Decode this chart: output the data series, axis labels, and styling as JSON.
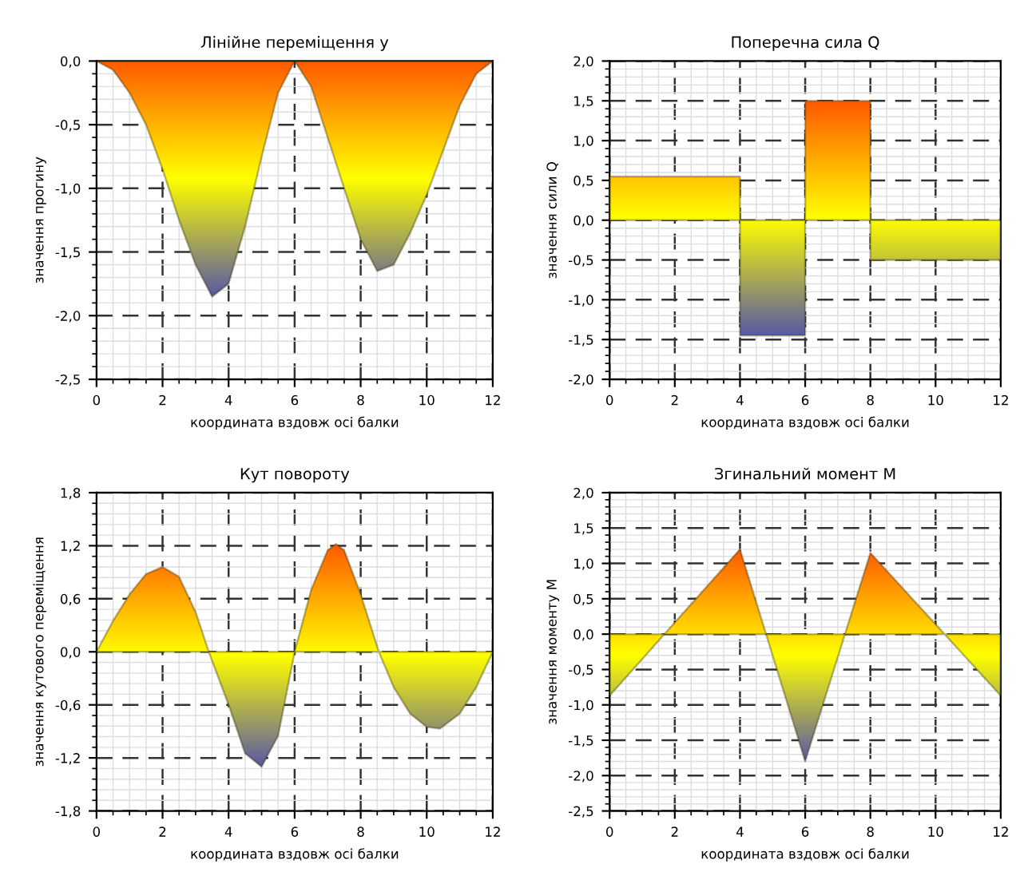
{
  "chart_data": [
    {
      "type": "area",
      "title": "Лінійне переміщення y",
      "xlabel": "координата вздовж осі балки",
      "ylabel": "значення прогину",
      "x": [
        0,
        0.5,
        1,
        1.5,
        2,
        2.5,
        3,
        3.5,
        4,
        4.5,
        5,
        5.5,
        6,
        6.5,
        7,
        7.5,
        8,
        8.5,
        9,
        9.5,
        10,
        10.5,
        11,
        11.5,
        12
      ],
      "series": [
        {
          "color": "#ffff00",
          "values": [
            0,
            -0.07,
            -0.25,
            -0.5,
            -0.85,
            -1.25,
            -1.6,
            -1.85,
            -1.75,
            -1.3,
            -0.75,
            -0.25,
            0,
            -0.2,
            -0.6,
            -1.0,
            -1.4,
            -1.65,
            -1.6,
            -1.35,
            -1.05,
            -0.7,
            -0.35,
            -0.1,
            0
          ]
        }
      ],
      "xlim": [
        0,
        12
      ],
      "xticks": [
        0,
        2,
        4,
        6,
        8,
        10,
        12
      ],
      "ylim": [
        -2.5,
        0
      ],
      "yticks": [
        {
          "value": 0,
          "label": "0,0"
        },
        {
          "value": -0.5,
          "label": "-0,5"
        },
        {
          "value": -1.0,
          "label": "-1,0"
        },
        {
          "value": -1.5,
          "label": "-1,5"
        },
        {
          "value": -2.0,
          "label": "-2,0"
        },
        {
          "value": -2.5,
          "label": "-2,5"
        }
      ],
      "grid": true,
      "line_style": "solid"
    },
    {
      "type": "area",
      "title": "Поперечна сила Q",
      "xlabel": "координата вздовж осі балки",
      "ylabel": "значення сили Q",
      "x": [
        0,
        4,
        4,
        6,
        6,
        8,
        8,
        12
      ],
      "series": [
        {
          "color": "#ffff00",
          "values": [
            0.55,
            0.55,
            -1.45,
            -1.45,
            1.5,
            1.5,
            -0.5,
            -0.5
          ]
        }
      ],
      "xlim": [
        0,
        12
      ],
      "xticks": [
        0,
        2,
        4,
        6,
        8,
        10,
        12
      ],
      "ylim": [
        -2.0,
        2.0
      ],
      "yticks": [
        {
          "value": 2.0,
          "label": "2,0"
        },
        {
          "value": 1.5,
          "label": "1,5"
        },
        {
          "value": 1.0,
          "label": "1,0"
        },
        {
          "value": 0.5,
          "label": "0,5"
        },
        {
          "value": 0,
          "label": "0,0"
        },
        {
          "value": -0.5,
          "label": "-0,5"
        },
        {
          "value": -1.0,
          "label": "-1,0"
        },
        {
          "value": -1.5,
          "label": "-1,5"
        },
        {
          "value": -2.0,
          "label": "-2,0"
        }
      ],
      "grid": true,
      "line_style": "solid"
    },
    {
      "type": "area",
      "title": "Кут повороту",
      "xlabel": "координата вздовж осі балки",
      "ylabel": "значення кутового переміщення",
      "x": [
        0,
        0.5,
        1,
        1.5,
        2,
        2.5,
        3,
        3.4,
        4,
        4.5,
        5,
        5.5,
        6,
        6.5,
        7,
        7.25,
        7.5,
        8,
        8.55,
        9,
        9.5,
        10,
        10.4,
        11,
        11.5,
        12
      ],
      "series": [
        {
          "color": "#ffff00",
          "values": [
            0,
            0.35,
            0.65,
            0.88,
            0.96,
            0.85,
            0.45,
            0,
            -0.6,
            -1.15,
            -1.3,
            -0.95,
            0,
            0.7,
            1.15,
            1.22,
            1.15,
            0.65,
            0,
            -0.4,
            -0.7,
            -0.85,
            -0.87,
            -0.7,
            -0.4,
            0
          ]
        }
      ],
      "xlim": [
        0,
        12
      ],
      "xticks": [
        0,
        2,
        4,
        6,
        8,
        10,
        12
      ],
      "ylim": [
        -1.8,
        1.8
      ],
      "yticks": [
        {
          "value": 1.8,
          "label": "1,8"
        },
        {
          "value": 1.2,
          "label": "1,2"
        },
        {
          "value": 0.6,
          "label": "0,6"
        },
        {
          "value": 0,
          "label": "0,0"
        },
        {
          "value": -0.6,
          "label": "-0,6"
        },
        {
          "value": -1.2,
          "label": "-1,2"
        },
        {
          "value": -1.8,
          "label": "-1,8"
        }
      ],
      "grid": true,
      "line_style": "solid"
    },
    {
      "type": "area",
      "title": "Згинальний момент M",
      "xlabel": "координата вздовж осі балки",
      "ylabel": "значення моменту M",
      "x": [
        0,
        4,
        6,
        8,
        12
      ],
      "series": [
        {
          "color": "#ffff00",
          "values": [
            -0.87,
            1.2,
            -1.8,
            1.15,
            -0.87
          ]
        }
      ],
      "xlim": [
        0,
        12
      ],
      "xticks": [
        0,
        2,
        4,
        6,
        8,
        10,
        12
      ],
      "ylim": [
        -2.5,
        2.0
      ],
      "yticks": [
        {
          "value": 2.0,
          "label": "2,0"
        },
        {
          "value": 1.5,
          "label": "1,5"
        },
        {
          "value": 1.0,
          "label": "1,0"
        },
        {
          "value": 0.5,
          "label": "0,5"
        },
        {
          "value": 0,
          "label": "0,0"
        },
        {
          "value": -0.5,
          "label": "-0,5"
        },
        {
          "value": -1.0,
          "label": "-1,0"
        },
        {
          "value": -1.5,
          "label": "-1,5"
        },
        {
          "value": -2.0,
          "label": "-2,0"
        },
        {
          "value": -2.5,
          "label": "-2,5"
        }
      ],
      "grid": true,
      "line_style": "solid"
    }
  ]
}
